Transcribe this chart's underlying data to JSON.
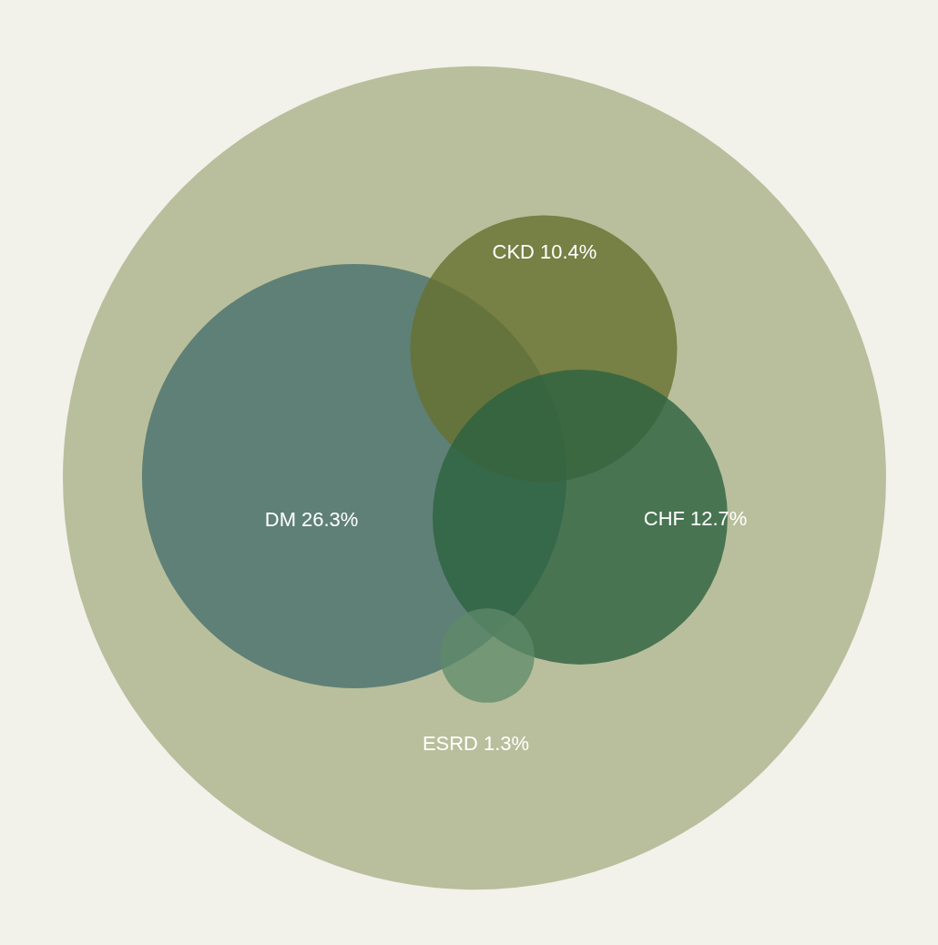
{
  "chart_data": {
    "type": "other",
    "categories": [
      "DM",
      "CKD",
      "CHF",
      "ESRD"
    ],
    "values": [
      26.3,
      10.4,
      12.7,
      1.3
    ],
    "value_labels": [
      "26.3%",
      "10.4%",
      "12.7%",
      "1.3%"
    ],
    "colors": [
      "#4f7470",
      "#66702f",
      "#2c6240",
      "#5d8a6a"
    ]
  }
}
